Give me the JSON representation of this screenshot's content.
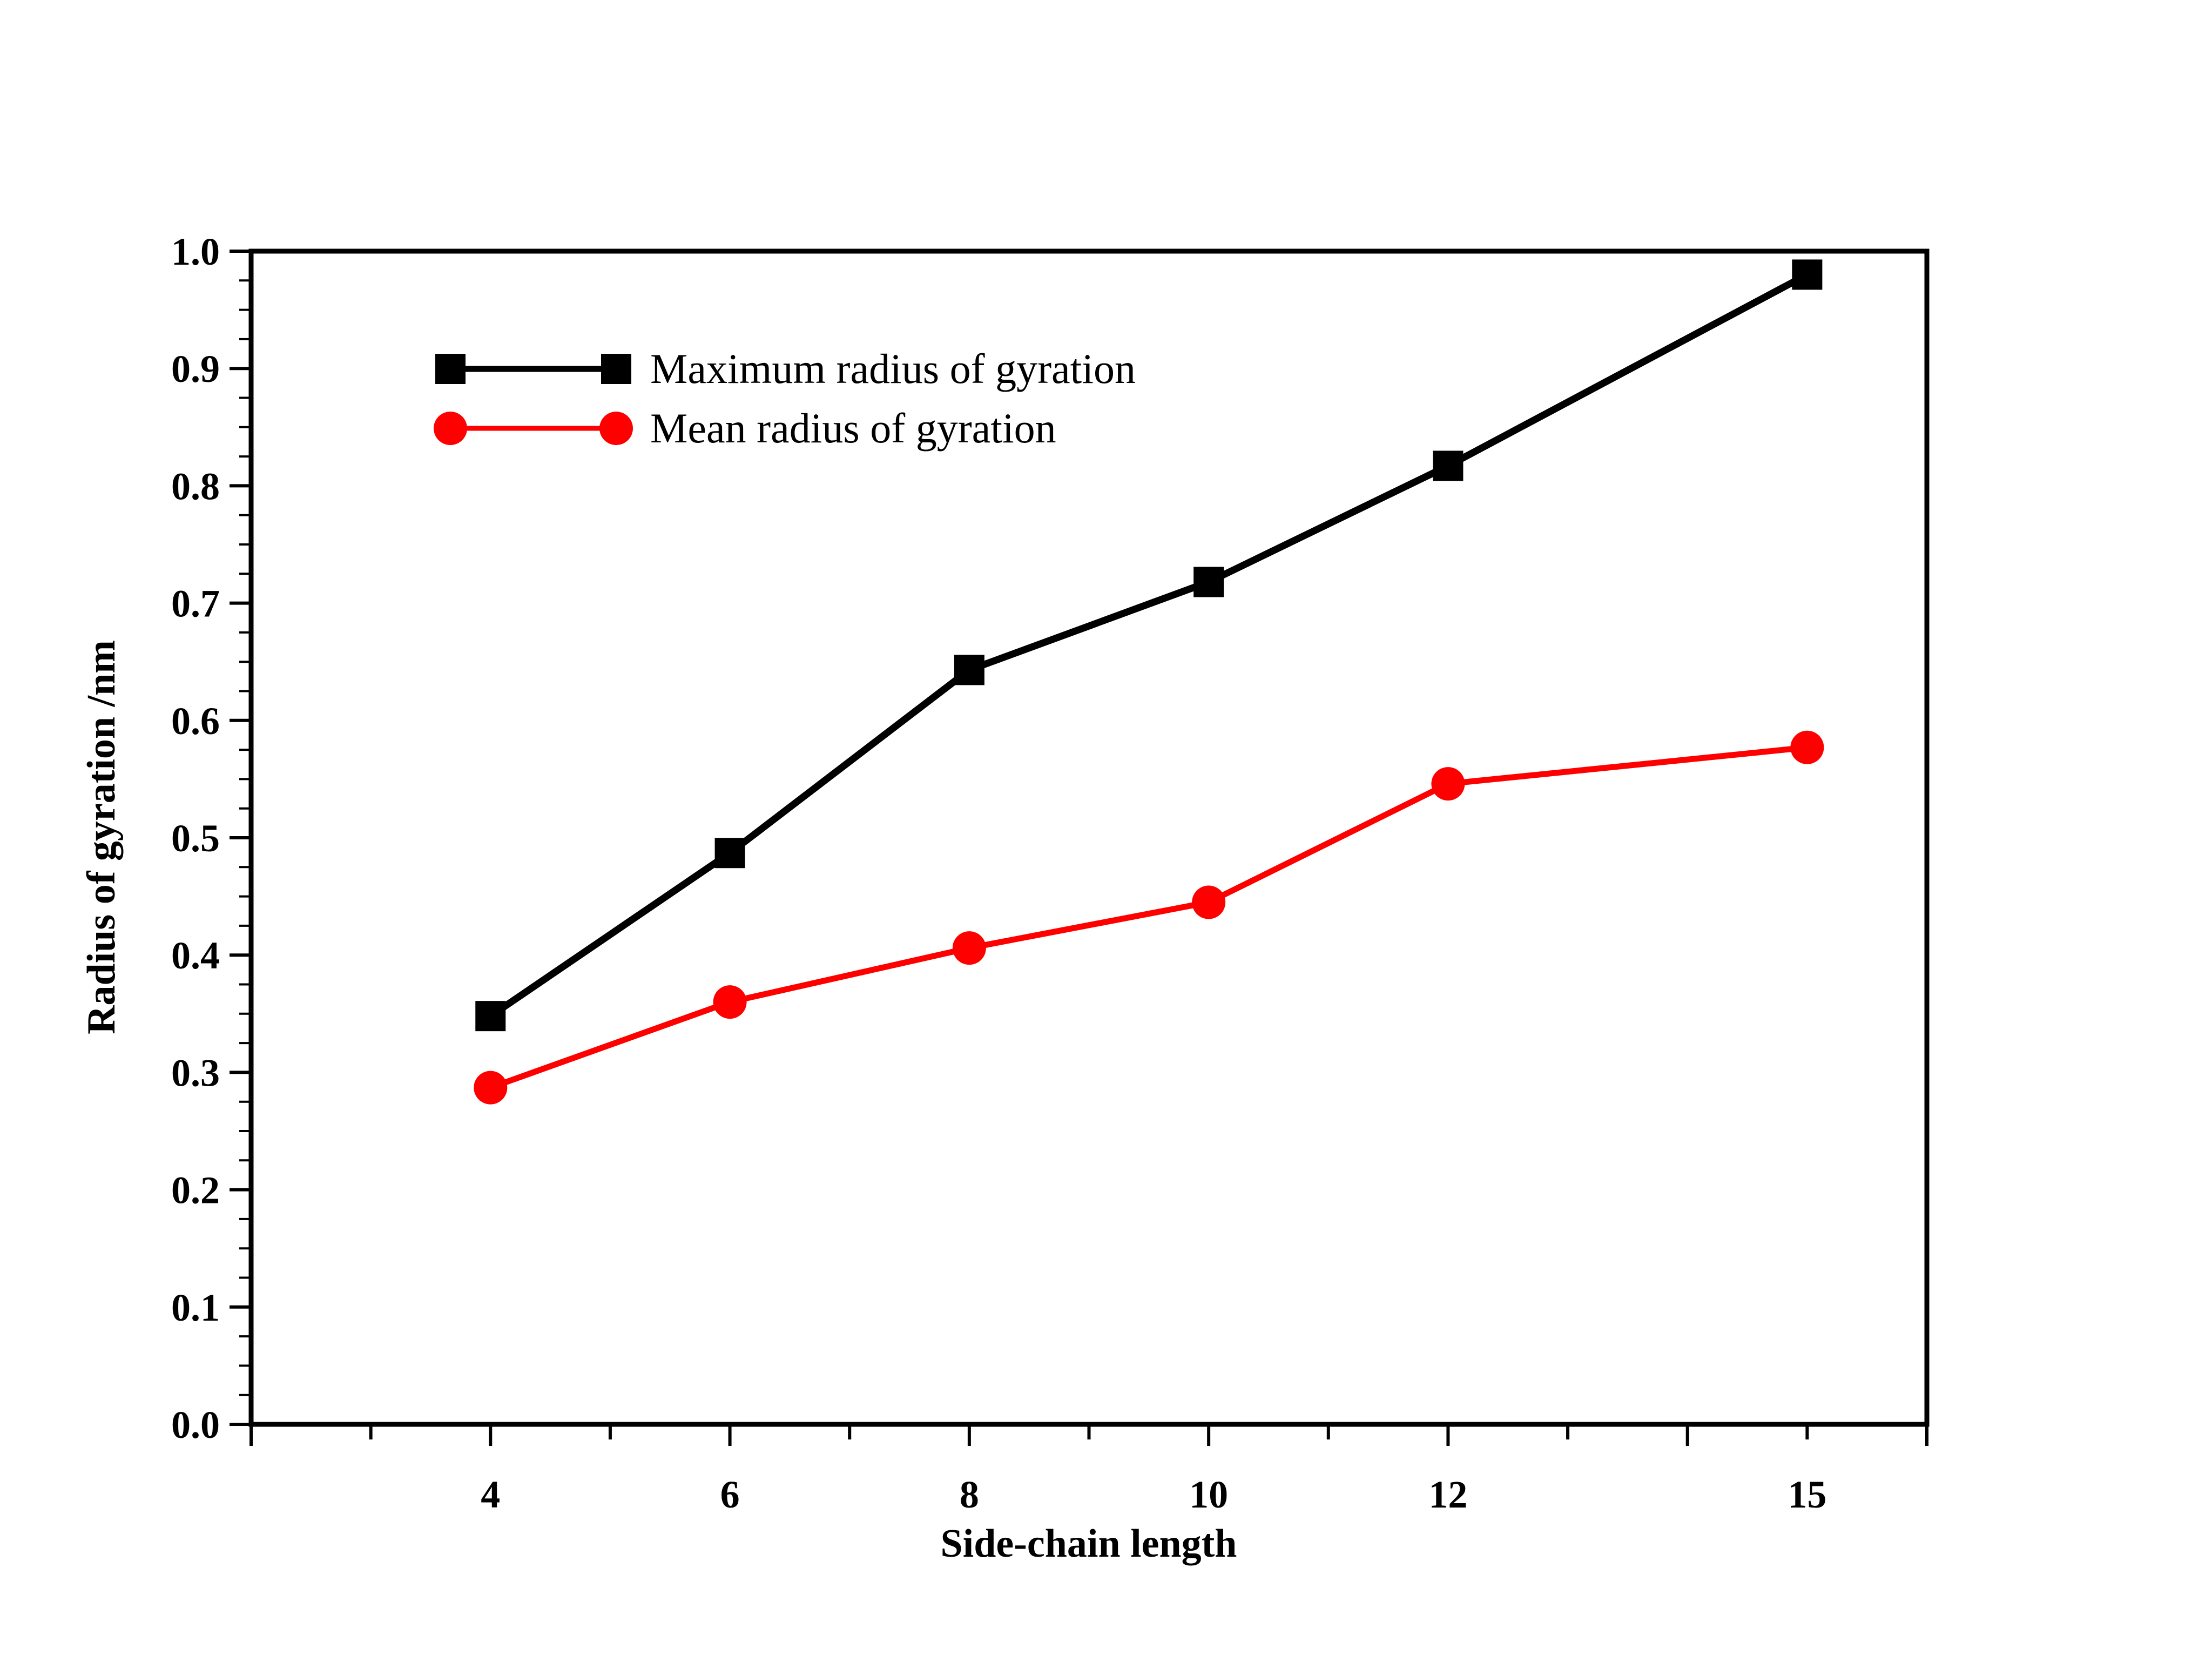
{
  "chart_data": {
    "type": "line",
    "title": "",
    "xlabel": "Side-chain length",
    "ylabel": "Radius of gyration /nm",
    "x": [
      "4",
      "6",
      "8",
      "10",
      "12",
      "15"
    ],
    "xlim": [
      2,
      16
    ],
    "ylim": [
      0.0,
      1.0
    ],
    "y_ticks": [
      "0.0",
      "0.1",
      "0.2",
      "0.3",
      "0.4",
      "0.5",
      "0.6",
      "0.7",
      "0.8",
      "0.9",
      "1.0"
    ],
    "grid": false,
    "legend_position": "top-left",
    "series": [
      {
        "name": "Maximum radius of gyration",
        "values": [
          0.348,
          0.487,
          0.643,
          0.718,
          0.817,
          0.98
        ],
        "color": "#000000",
        "marker": "square"
      },
      {
        "name": "Mean radius of gyration",
        "values": [
          0.287,
          0.36,
          0.406,
          0.445,
          0.546,
          0.577
        ],
        "color": "#ff0000",
        "marker": "circle"
      }
    ]
  }
}
